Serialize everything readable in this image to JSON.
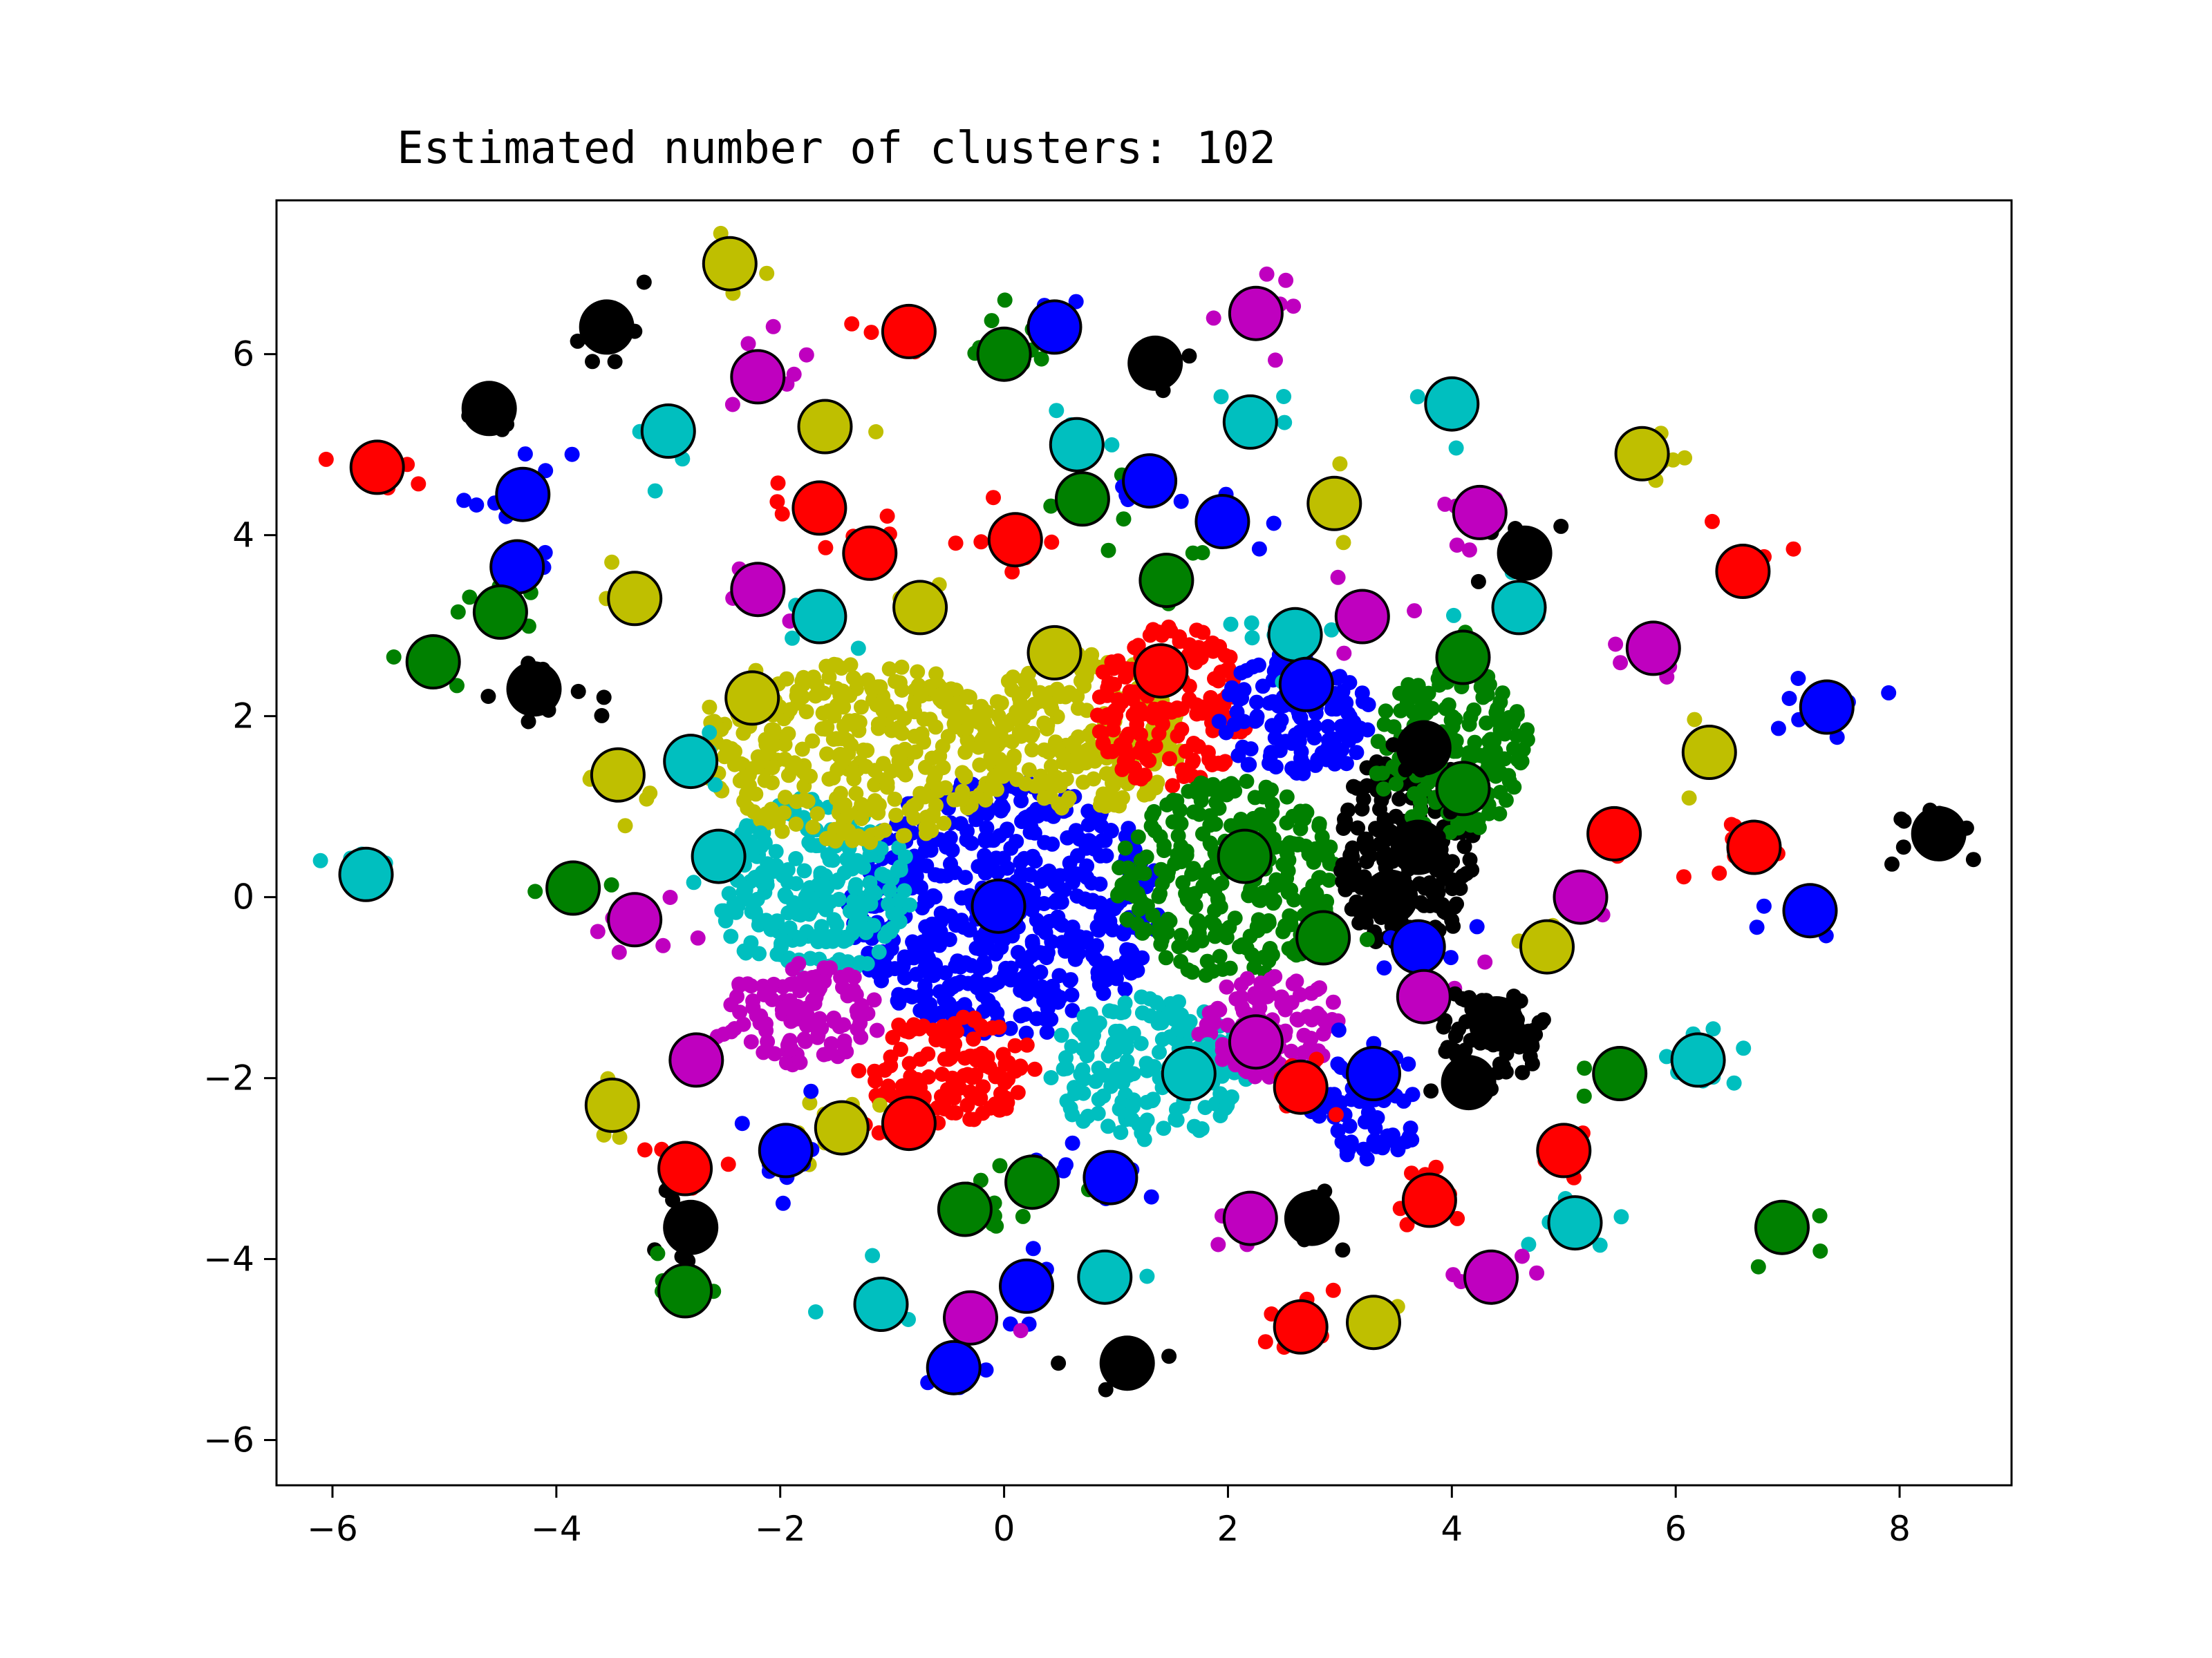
{
  "chart_data": {
    "type": "scatter",
    "title": "Estimated number of clusters: 102",
    "xlabel": "",
    "ylabel": "",
    "xlim": [
      -6.5,
      9.0
    ],
    "ylim": [
      -6.5,
      7.7
    ],
    "xticks": [
      -6,
      -4,
      -2,
      0,
      2,
      4,
      6,
      8
    ],
    "yticks": [
      -6,
      -4,
      -2,
      0,
      2,
      4,
      6
    ],
    "xtick_labels": [
      "−6",
      "−4",
      "−2",
      "0",
      "2",
      "4",
      "6",
      "8"
    ],
    "ytick_labels": [
      "−6",
      "−4",
      "−2",
      "0",
      "2",
      "4",
      "6"
    ],
    "grid": false,
    "legend": "none",
    "color_cycle": {
      "b": "#0000ff",
      "g": "#008000",
      "r": "#ff0000",
      "c": "#00bfbf",
      "m": "#bf00bf",
      "y": "#bfbf00",
      "k": "#000000"
    },
    "center_edge_color": "#000000",
    "dense_regions": [
      {
        "color": "b",
        "x": 0.0,
        "y": -0.1,
        "rx": 1.4,
        "ry": 1.45
      },
      {
        "color": "c",
        "x": -1.7,
        "y": 0.1,
        "rx": 0.9,
        "ry": 1.0
      },
      {
        "color": "y",
        "x": -1.3,
        "y": 1.6,
        "rx": 1.4,
        "ry": 1.0
      },
      {
        "color": "y",
        "x": 0.7,
        "y": 1.8,
        "rx": 0.9,
        "ry": 0.9
      },
      {
        "color": "r",
        "x": 1.5,
        "y": 2.1,
        "rx": 0.7,
        "ry": 0.9
      },
      {
        "color": "g",
        "x": 2.0,
        "y": 0.2,
        "rx": 1.0,
        "ry": 1.1
      },
      {
        "color": "c",
        "x": 1.3,
        "y": -1.9,
        "rx": 0.9,
        "ry": 0.8
      },
      {
        "color": "r",
        "x": -0.5,
        "y": -1.9,
        "rx": 0.8,
        "ry": 0.6
      },
      {
        "color": "m",
        "x": -1.8,
        "y": -1.3,
        "rx": 0.7,
        "ry": 0.6
      },
      {
        "color": "b",
        "x": 2.6,
        "y": 2.0,
        "rx": 0.7,
        "ry": 0.7
      },
      {
        "color": "k",
        "x": 3.6,
        "y": 0.5,
        "rx": 0.6,
        "ry": 1.2
      },
      {
        "color": "m",
        "x": 2.4,
        "y": -1.4,
        "rx": 0.6,
        "ry": 0.6
      },
      {
        "color": "g",
        "x": 4.0,
        "y": 1.6,
        "rx": 0.7,
        "ry": 0.9
      },
      {
        "color": "k",
        "x": 4.4,
        "y": -1.5,
        "rx": 0.5,
        "ry": 0.5
      },
      {
        "color": "b",
        "x": 3.2,
        "y": -2.5,
        "rx": 0.5,
        "ry": 0.4
      }
    ],
    "centers": [
      {
        "x": -0.05,
        "y": -0.1,
        "color": "b"
      },
      {
        "x": -2.45,
        "y": 7.0,
        "color": "y"
      },
      {
        "x": -3.55,
        "y": 6.3,
        "color": "k"
      },
      {
        "x": -0.85,
        "y": 6.25,
        "color": "r"
      },
      {
        "x": 0.0,
        "y": 6.0,
        "color": "g"
      },
      {
        "x": 0.45,
        "y": 6.3,
        "color": "b"
      },
      {
        "x": 1.35,
        "y": 5.9,
        "color": "k"
      },
      {
        "x": 2.25,
        "y": 6.45,
        "color": "m"
      },
      {
        "x": -2.2,
        "y": 5.75,
        "color": "m"
      },
      {
        "x": -4.6,
        "y": 5.4,
        "color": "k"
      },
      {
        "x": -3.0,
        "y": 5.15,
        "color": "c"
      },
      {
        "x": -1.6,
        "y": 5.2,
        "color": "y"
      },
      {
        "x": 0.65,
        "y": 5.0,
        "color": "c"
      },
      {
        "x": 2.2,
        "y": 5.25,
        "color": "c"
      },
      {
        "x": 4.0,
        "y": 5.45,
        "color": "c"
      },
      {
        "x": 5.7,
        "y": 4.9,
        "color": "y"
      },
      {
        "x": -5.6,
        "y": 4.75,
        "color": "r"
      },
      {
        "x": -4.3,
        "y": 4.45,
        "color": "b"
      },
      {
        "x": -1.65,
        "y": 4.3,
        "color": "r"
      },
      {
        "x": 0.7,
        "y": 4.4,
        "color": "g"
      },
      {
        "x": 1.3,
        "y": 4.6,
        "color": "b"
      },
      {
        "x": 1.95,
        "y": 4.15,
        "color": "b"
      },
      {
        "x": 2.95,
        "y": 4.35,
        "color": "y"
      },
      {
        "x": 4.25,
        "y": 4.25,
        "color": "m"
      },
      {
        "x": -1.2,
        "y": 3.8,
        "color": "r"
      },
      {
        "x": 0.1,
        "y": 3.95,
        "color": "r"
      },
      {
        "x": -4.35,
        "y": 3.65,
        "color": "b"
      },
      {
        "x": 4.65,
        "y": 3.8,
        "color": "k"
      },
      {
        "x": 6.6,
        "y": 3.6,
        "color": "r"
      },
      {
        "x": -4.5,
        "y": 3.15,
        "color": "g"
      },
      {
        "x": -3.3,
        "y": 3.3,
        "color": "y"
      },
      {
        "x": -2.2,
        "y": 3.4,
        "color": "m"
      },
      {
        "x": -1.65,
        "y": 3.1,
        "color": "c"
      },
      {
        "x": -0.75,
        "y": 3.2,
        "color": "y"
      },
      {
        "x": 1.45,
        "y": 3.5,
        "color": "g"
      },
      {
        "x": 3.2,
        "y": 3.1,
        "color": "m"
      },
      {
        "x": 4.6,
        "y": 3.2,
        "color": "c"
      },
      {
        "x": 2.6,
        "y": 2.9,
        "color": "c"
      },
      {
        "x": -5.1,
        "y": 2.6,
        "color": "g"
      },
      {
        "x": 0.45,
        "y": 2.7,
        "color": "y"
      },
      {
        "x": 5.8,
        "y": 2.75,
        "color": "m"
      },
      {
        "x": 4.1,
        "y": 2.65,
        "color": "g"
      },
      {
        "x": -4.2,
        "y": 2.3,
        "color": "k"
      },
      {
        "x": -2.25,
        "y": 2.2,
        "color": "y"
      },
      {
        "x": 1.4,
        "y": 2.5,
        "color": "r"
      },
      {
        "x": 2.7,
        "y": 2.35,
        "color": "b"
      },
      {
        "x": 7.35,
        "y": 2.1,
        "color": "b"
      },
      {
        "x": 3.75,
        "y": 1.65,
        "color": "k"
      },
      {
        "x": 6.3,
        "y": 1.6,
        "color": "y"
      },
      {
        "x": -3.45,
        "y": 1.35,
        "color": "y"
      },
      {
        "x": -2.8,
        "y": 1.5,
        "color": "c"
      },
      {
        "x": 4.1,
        "y": 1.2,
        "color": "g"
      },
      {
        "x": 8.35,
        "y": 0.7,
        "color": "k"
      },
      {
        "x": 5.45,
        "y": 0.7,
        "color": "r"
      },
      {
        "x": 6.7,
        "y": 0.55,
        "color": "r"
      },
      {
        "x": 3.7,
        "y": 0.55,
        "color": "k"
      },
      {
        "x": -2.55,
        "y": 0.45,
        "color": "c"
      },
      {
        "x": 2.15,
        "y": 0.45,
        "color": "g"
      },
      {
        "x": -5.7,
        "y": 0.25,
        "color": "c"
      },
      {
        "x": -3.85,
        "y": 0.1,
        "color": "g"
      },
      {
        "x": 5.15,
        "y": 0.0,
        "color": "m"
      },
      {
        "x": 3.45,
        "y": 0.0,
        "color": "k"
      },
      {
        "x": -3.3,
        "y": -0.25,
        "color": "m"
      },
      {
        "x": 7.2,
        "y": -0.15,
        "color": "b"
      },
      {
        "x": 2.85,
        "y": -0.45,
        "color": "g"
      },
      {
        "x": 3.7,
        "y": -0.55,
        "color": "b"
      },
      {
        "x": 4.85,
        "y": -0.55,
        "color": "y"
      },
      {
        "x": 3.75,
        "y": -1.1,
        "color": "m"
      },
      {
        "x": 4.4,
        "y": -1.4,
        "color": "k"
      },
      {
        "x": 2.25,
        "y": -1.6,
        "color": "m"
      },
      {
        "x": -2.75,
        "y": -1.8,
        "color": "m"
      },
      {
        "x": 6.2,
        "y": -1.8,
        "color": "c"
      },
      {
        "x": 1.65,
        "y": -1.95,
        "color": "c"
      },
      {
        "x": 3.3,
        "y": -1.95,
        "color": "b"
      },
      {
        "x": 5.5,
        "y": -1.95,
        "color": "g"
      },
      {
        "x": 4.15,
        "y": -2.05,
        "color": "k"
      },
      {
        "x": 2.65,
        "y": -2.1,
        "color": "r"
      },
      {
        "x": -3.5,
        "y": -2.3,
        "color": "y"
      },
      {
        "x": -0.85,
        "y": -2.5,
        "color": "r"
      },
      {
        "x": -1.45,
        "y": -2.55,
        "color": "y"
      },
      {
        "x": -1.95,
        "y": -2.8,
        "color": "b"
      },
      {
        "x": 5.0,
        "y": -2.8,
        "color": "r"
      },
      {
        "x": -2.85,
        "y": -3.0,
        "color": "r"
      },
      {
        "x": 0.95,
        "y": -3.1,
        "color": "b"
      },
      {
        "x": 0.25,
        "y": -3.15,
        "color": "g"
      },
      {
        "x": 3.8,
        "y": -3.35,
        "color": "r"
      },
      {
        "x": -0.35,
        "y": -3.45,
        "color": "g"
      },
      {
        "x": 2.75,
        "y": -3.55,
        "color": "k"
      },
      {
        "x": 2.2,
        "y": -3.55,
        "color": "m"
      },
      {
        "x": 5.1,
        "y": -3.6,
        "color": "c"
      },
      {
        "x": -2.8,
        "y": -3.65,
        "color": "k"
      },
      {
        "x": 6.95,
        "y": -3.65,
        "color": "g"
      },
      {
        "x": 4.35,
        "y": -4.2,
        "color": "m"
      },
      {
        "x": 0.9,
        "y": -4.2,
        "color": "c"
      },
      {
        "x": 0.2,
        "y": -4.3,
        "color": "b"
      },
      {
        "x": -2.85,
        "y": -4.35,
        "color": "g"
      },
      {
        "x": -1.1,
        "y": -4.5,
        "color": "c"
      },
      {
        "x": -0.3,
        "y": -4.65,
        "color": "m"
      },
      {
        "x": 3.3,
        "y": -4.7,
        "color": "y"
      },
      {
        "x": 2.65,
        "y": -4.75,
        "color": "r"
      },
      {
        "x": 1.1,
        "y": -5.15,
        "color": "k"
      },
      {
        "x": -0.45,
        "y": -5.2,
        "color": "b"
      }
    ]
  }
}
